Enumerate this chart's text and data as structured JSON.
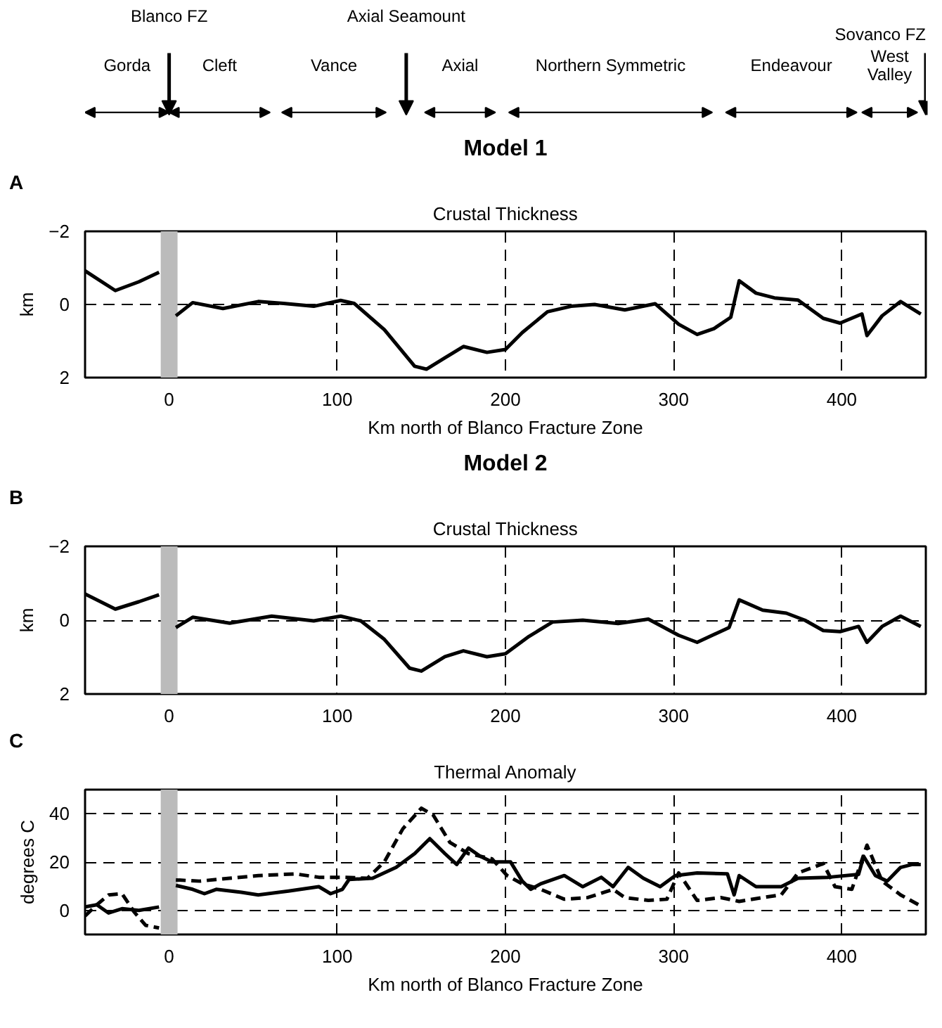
{
  "chart_data": [
    {
      "type": "line",
      "title": "Model 1",
      "subtitle": "Crustal Thickness",
      "annotations": [
        "A",
        "Gorda",
        "Cleft",
        "Vance",
        "Axial",
        "Northern Symmetric",
        "Endeavour",
        "West\nValley",
        "Blanco FZ",
        "Axial Seamount",
        "Sovanco FZ"
      ],
      "xlabel": "Km north of Blanco Fracture Zone",
      "ylabel": "km",
      "xlim": [
        -50,
        450
      ],
      "ylim": [
        2,
        -2
      ],
      "xticks": [
        0,
        100,
        200,
        300,
        400
      ],
      "yticks": [
        -2,
        0,
        2
      ],
      "grid": true,
      "line_style": "solid",
      "bands": [
        {
          "axis": "x",
          "from": -5,
          "to": 5,
          "color": "#bbbbbb"
        }
      ],
      "series": [
        {
          "color": "#000000",
          "x": [
            -50,
            -32,
            -18,
            -6,
            0,
            4,
            14,
            32,
            53,
            68,
            86,
            102,
            110,
            128,
            146,
            153,
            164,
            175,
            189,
            200,
            210,
            225,
            239,
            253,
            271,
            289,
            303,
            314,
            324,
            334,
            339,
            349,
            360,
            374,
            389,
            399,
            412,
            415,
            424,
            435,
            447
          ],
          "values": [
            -0.92,
            -0.38,
            -0.62,
            -0.88,
            null,
            0.31,
            -0.05,
            0.11,
            -0.08,
            -0.03,
            0.05,
            -0.11,
            -0.03,
            0.69,
            1.69,
            1.77,
            1.46,
            1.15,
            1.31,
            1.23,
            0.77,
            0.2,
            0.05,
            0,
            0.15,
            -0.02,
            0.54,
            0.82,
            0.66,
            0.35,
            -0.65,
            -0.31,
            -0.18,
            -0.12,
            0.38,
            0.51,
            0.26,
            0.85,
            0.31,
            -0.08,
            0.26
          ]
        }
      ]
    },
    {
      "type": "line",
      "title": "Model 2",
      "subtitle": "Crustal Thickness",
      "annotations": [
        "B"
      ],
      "ylabel": "km",
      "xlim": [
        -50,
        450
      ],
      "ylim": [
        2,
        -2
      ],
      "xticks": [
        0,
        100,
        200,
        300,
        400
      ],
      "yticks": [
        -2,
        0,
        2
      ],
      "grid": true,
      "line_style": "solid",
      "bands": [
        {
          "axis": "x",
          "from": -5,
          "to": 5,
          "color": "#bbbbbb"
        }
      ],
      "series": [
        {
          "color": "#000000",
          "x": [
            -50,
            -32,
            -18,
            -6,
            0,
            4,
            14,
            36,
            61,
            86,
            102,
            114,
            128,
            143,
            150,
            164,
            175,
            189,
            200,
            214,
            228,
            246,
            267,
            285,
            303,
            314,
            333,
            339,
            353,
            367,
            378,
            389,
            399,
            410,
            415,
            424,
            435,
            447
          ],
          "values": [
            -0.71,
            -0.3,
            -0.5,
            -0.69,
            null,
            0.2,
            -0.08,
            0.08,
            -0.11,
            0.02,
            -0.11,
            0.02,
            0.52,
            1.3,
            1.38,
            0.99,
            0.83,
            0.99,
            0.91,
            0.44,
            0.05,
            0,
            0.09,
            -0.03,
            0.41,
            0.6,
            0.2,
            -0.55,
            -0.27,
            -0.19,
            0,
            0.28,
            0.31,
            0.17,
            0.6,
            0.17,
            -0.11,
            0.17
          ]
        }
      ]
    },
    {
      "type": "line",
      "subtitle": "Thermal Anomaly",
      "annotations": [
        "C"
      ],
      "xlabel": "Km north of Blanco Fracture Zone",
      "ylabel": "degrees C",
      "xlim": [
        -50,
        450
      ],
      "ylim": [
        -10,
        50
      ],
      "xticks": [
        0,
        100,
        200,
        300,
        400
      ],
      "yticks": [
        0,
        20,
        40
      ],
      "grid": true,
      "bands": [
        {
          "axis": "x",
          "from": -5,
          "to": 5,
          "color": "#bbbbbb"
        }
      ],
      "series": [
        {
          "color": "#000000",
          "line_style": "solid",
          "x": [
            -50,
            -43,
            -36,
            -28,
            -18,
            -6,
            0,
            4,
            14,
            21,
            28,
            43,
            53,
            71,
            89,
            96,
            103,
            107,
            121,
            135,
            146,
            155,
            164,
            171,
            178,
            185,
            192,
            203,
            210,
            215,
            221,
            235,
            246,
            257,
            264,
            273,
            282,
            292,
            301,
            314,
            332,
            336,
            339,
            349,
            364,
            374,
            392,
            410,
            413,
            420,
            427,
            435,
            442,
            447
          ],
          "values": [
            1.4,
            2.3,
            -1.1,
            0.7,
            0,
            1.4,
            null,
            10.3,
            8.7,
            6.9,
            8.7,
            7.5,
            6.4,
            8,
            9.8,
            6.9,
            8.7,
            12.8,
            13.3,
            17.8,
            23.5,
            29.7,
            23.5,
            19,
            25.8,
            22.4,
            20.1,
            20.1,
            12.1,
            8.7,
            11,
            14.4,
            9.8,
            13.7,
            9.8,
            17.8,
            13.3,
            9.8,
            14.4,
            15.5,
            15.1,
            6.4,
            14.4,
            9.8,
            9.8,
            13.3,
            13.7,
            14.9,
            22.4,
            14.4,
            12.1,
            17.8,
            19,
            19
          ]
        },
        {
          "color": "#000000",
          "line_style": "dashed",
          "x": [
            -50,
            -43,
            -36,
            -28,
            -21,
            -14,
            -6,
            0,
            4,
            18,
            36,
            53,
            75,
            89,
            103,
            118,
            128,
            139,
            150,
            157,
            167,
            178,
            192,
            201,
            210,
            221,
            235,
            249,
            264,
            271,
            285,
            296,
            303,
            314,
            328,
            339,
            353,
            364,
            374,
            389,
            396,
            406,
            415,
            424,
            435,
            447
          ],
          "values": [
            -2.3,
            2.3,
            6.4,
            6.9,
            -0.5,
            -6.2,
            -7.3,
            null,
            12.6,
            12.1,
            13.3,
            14.4,
            15.1,
            13.7,
            13.7,
            13.3,
            20.1,
            33.8,
            42.3,
            39.5,
            28.1,
            23.5,
            21.3,
            14.4,
            11,
            8.7,
            4.6,
            5.3,
            8.7,
            5.3,
            4.1,
            4.6,
            15.5,
            4.1,
            5.3,
            3.7,
            5.3,
            6.4,
            15.5,
            19.4,
            9.8,
            8.7,
            27,
            12.1,
            6.4,
            1.8
          ]
        }
      ]
    }
  ]
}
